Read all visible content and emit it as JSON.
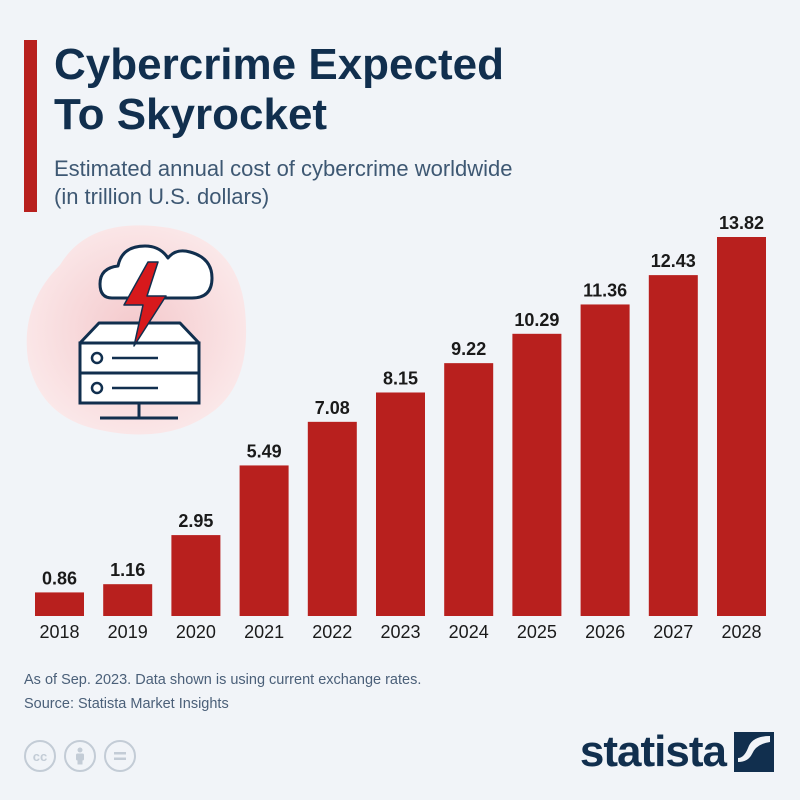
{
  "header": {
    "title": "Cybercrime Expected\nTo Skyrocket",
    "subtitle": "Estimated annual cost of cybercrime worldwide\n(in trillion U.S. dollars)"
  },
  "chart_data": {
    "type": "bar",
    "title": "Cybercrime Expected To Skyrocket",
    "subtitle": "Estimated annual cost of cybercrime worldwide (in trillion U.S. dollars)",
    "categories": [
      "2018",
      "2019",
      "2020",
      "2021",
      "2022",
      "2023",
      "2024",
      "2025",
      "2026",
      "2027",
      "2028"
    ],
    "values": [
      0.86,
      1.16,
      2.95,
      5.49,
      7.08,
      8.15,
      9.22,
      10.29,
      11.36,
      12.43,
      13.82
    ],
    "value_labels": [
      "0.86",
      "1.16",
      "2.95",
      "5.49",
      "7.08",
      "8.15",
      "9.22",
      "10.29",
      "11.36",
      "12.43",
      "13.82"
    ],
    "ylim": [
      0,
      13.82
    ],
    "xlabel": "",
    "ylabel": "",
    "grid": false,
    "bar_color": "#b8201e"
  },
  "footer": {
    "note": "As of Sep. 2023. Data shown is using current exchange rates.",
    "source": "Source: Statista Market Insights"
  },
  "branding": {
    "name": "statista",
    "license_icons": [
      "cc-icon",
      "attribution-icon",
      "no-derivatives-icon"
    ]
  },
  "colors": {
    "accent": "#b8201e",
    "title": "#112f4e",
    "background": "#f1f4f8"
  }
}
